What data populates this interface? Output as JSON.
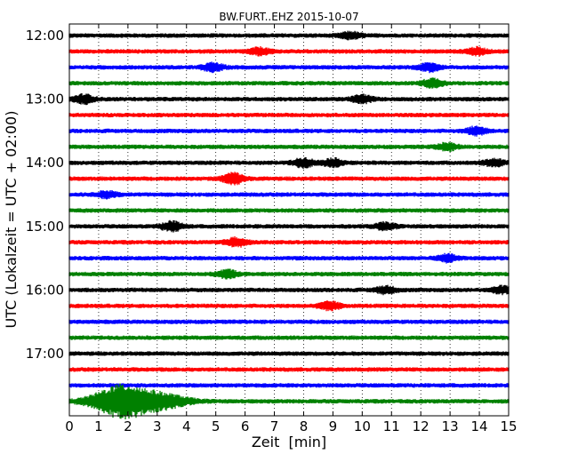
{
  "chart_data": {
    "type": "line",
    "title": "BW.FURT..EHZ 2015-10-07",
    "xlabel": "Zeit  [min]",
    "ylabel": "UTC (Lokalzeit = UTC + 02:00)",
    "xlim": [
      0,
      15
    ],
    "x_ticks": [
      "0",
      "1",
      "2",
      "3",
      "4",
      "5",
      "6",
      "7",
      "8",
      "9",
      "10",
      "11",
      "12",
      "13",
      "14",
      "15"
    ],
    "y_ticks": [
      "12:00",
      "13:00",
      "14:00",
      "15:00",
      "16:00",
      "17:00"
    ],
    "row_interval_minutes": 15,
    "grid": "vertical dotted lines at each minute",
    "trace_colors": [
      "#000000",
      "#ff0000",
      "#0000ff",
      "#008000"
    ],
    "trace_count": 24,
    "traces": [
      {
        "start": "12:00",
        "color": "#000000"
      },
      {
        "start": "12:15",
        "color": "#ff0000"
      },
      {
        "start": "12:30",
        "color": "#0000ff"
      },
      {
        "start": "12:45",
        "color": "#008000"
      },
      {
        "start": "13:00",
        "color": "#000000"
      },
      {
        "start": "13:15",
        "color": "#ff0000"
      },
      {
        "start": "13:30",
        "color": "#0000ff"
      },
      {
        "start": "13:45",
        "color": "#008000"
      },
      {
        "start": "14:00",
        "color": "#000000"
      },
      {
        "start": "14:15",
        "color": "#ff0000"
      },
      {
        "start": "14:30",
        "color": "#0000ff"
      },
      {
        "start": "14:45",
        "color": "#008000"
      },
      {
        "start": "15:00",
        "color": "#000000"
      },
      {
        "start": "15:15",
        "color": "#ff0000"
      },
      {
        "start": "15:30",
        "color": "#0000ff"
      },
      {
        "start": "15:45",
        "color": "#008000"
      },
      {
        "start": "16:00",
        "color": "#000000"
      },
      {
        "start": "16:15",
        "color": "#ff0000"
      },
      {
        "start": "16:30",
        "color": "#0000ff"
      },
      {
        "start": "16:45",
        "color": "#008000"
      },
      {
        "start": "17:00",
        "color": "#000000"
      },
      {
        "start": "17:15",
        "color": "#ff0000"
      },
      {
        "start": "17:30",
        "color": "#0000ff"
      },
      {
        "start": "17:45",
        "color": "#008000"
      }
    ]
  }
}
